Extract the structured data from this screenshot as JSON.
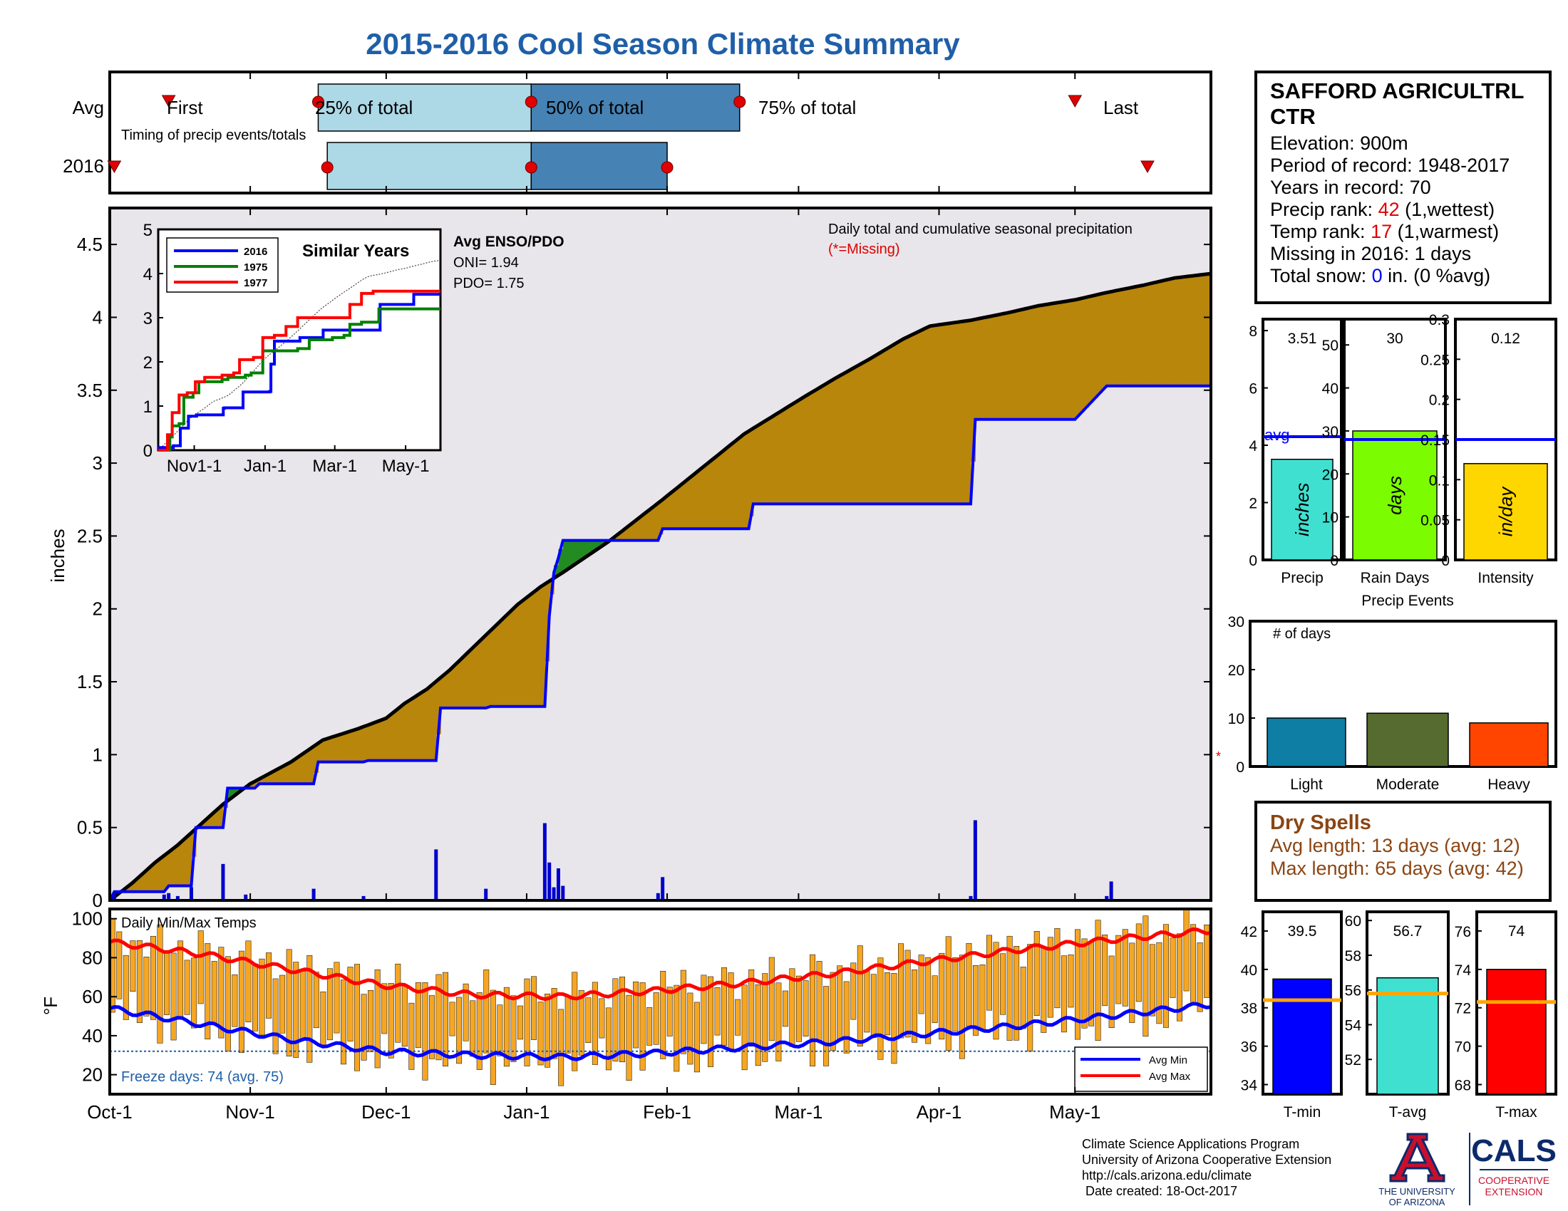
{
  "title": "2015-2016 Cool Season Climate Summary",
  "timing": {
    "row_labels": [
      "Avg",
      "2016"
    ],
    "subtitle": "Timing of precip events/totals",
    "labels": {
      "first": "First",
      "p25": "25% of total",
      "p50": "50% of total",
      "p75": "75% of total",
      "last": "Last"
    },
    "avg": {
      "first": "Oct-14",
      "p25": "Nov-16",
      "p50": "Jan-2",
      "p75": "Feb-17",
      "last": "May-1"
    },
    "y2016": {
      "first": "Oct-2",
      "p25": "Nov-18",
      "p50": "Jan-2",
      "p75": "Feb-1",
      "last": "May-17"
    }
  },
  "station": {
    "name": "SAFFORD AGRICULTRL CTR",
    "elevation": "Elevation: 900m",
    "period": "Period of record: 1948-2017",
    "years": "Years in record: 70",
    "precip_rank_label": "Precip rank: ",
    "precip_rank_value": "42",
    "precip_rank_note": " (1,wettest)",
    "temp_rank_label": "Temp rank: ",
    "temp_rank_value": "17",
    "temp_rank_note": " (1,warmest)",
    "missing": "Missing in 2016: 1 days",
    "snow_label": "Total snow: ",
    "snow_value": "0",
    "snow_note": " in. (0 %avg)"
  },
  "main_chart": {
    "ylabel": "inches",
    "note": "Daily total and cumulative seasonal precipitation",
    "missing_note": "(*=Missing)",
    "x_ticks": [
      "Oct-1",
      "Nov-1",
      "Dec-1",
      "Jan-1",
      "Feb-1",
      "Mar-1",
      "Apr-1",
      "May-1"
    ],
    "y_ticks": [
      "0",
      "0.5",
      "1",
      "1.5",
      "2",
      "2.5",
      "3",
      "3.5",
      "4",
      "4.5"
    ]
  },
  "chart_data": [
    {
      "type": "area",
      "ylabel": "inches",
      "ylim": [
        0,
        4.75
      ],
      "x_unit": "day of season (Oct-1 = 0)",
      "x_range": [
        0,
        243
      ],
      "series": [
        {
          "name": "avg cumulative",
          "x": [
            0,
            5,
            10,
            15,
            20,
            25,
            31,
            40,
            47,
            55,
            61,
            65,
            70,
            75,
            80,
            85,
            90,
            95,
            100,
            110,
            122,
            130,
            140,
            153,
            160,
            168,
            175,
            181,
            190,
            198,
            205,
            213,
            220,
            228,
            235,
            243
          ],
          "y": [
            0,
            0.12,
            0.26,
            0.38,
            0.52,
            0.66,
            0.8,
            0.95,
            1.1,
            1.18,
            1.25,
            1.35,
            1.45,
            1.58,
            1.73,
            1.88,
            2.03,
            2.15,
            2.25,
            2.46,
            2.75,
            2.95,
            3.2,
            3.45,
            3.58,
            3.72,
            3.85,
            3.94,
            3.98,
            4.03,
            4.08,
            4.12,
            4.17,
            4.22,
            4.27,
            4.3
          ]
        },
        {
          "name": "2016 cumulative",
          "x": [
            0,
            1,
            12,
            13,
            18,
            19,
            25,
            26,
            32,
            33,
            45,
            46,
            56,
            57,
            72,
            73,
            83,
            84,
            96,
            97,
            98,
            99,
            100,
            110,
            121,
            122,
            141,
            142,
            144,
            190,
            191,
            212,
            213,
            220,
            243
          ],
          "y": [
            0,
            0.06,
            0.06,
            0.1,
            0.1,
            0.5,
            0.5,
            0.77,
            0.77,
            0.8,
            0.8,
            0.95,
            0.95,
            0.96,
            0.96,
            1.32,
            1.32,
            1.33,
            1.33,
            1.95,
            2.25,
            2.35,
            2.47,
            2.47,
            2.47,
            2.55,
            2.55,
            2.72,
            2.72,
            2.72,
            3.3,
            3.3,
            3.3,
            3.53,
            3.53
          ]
        }
      ],
      "daily_bars": {
        "x": [
          1,
          12,
          13,
          15,
          18,
          25,
          30,
          45,
          56,
          72,
          83,
          96,
          97,
          98,
          99,
          100,
          121,
          122,
          190,
          191,
          220,
          221
        ],
        "y": [
          0.06,
          0.04,
          0.05,
          0.03,
          0.09,
          0.25,
          0.04,
          0.08,
          0.03,
          0.35,
          0.08,
          0.53,
          0.26,
          0.09,
          0.22,
          0.1,
          0.05,
          0.16,
          0.03,
          0.55,
          0.03,
          0.13
        ]
      }
    },
    {
      "type": "line",
      "title": "Similar Years",
      "x_ticks": [
        "Nov1-1",
        "Jan-1",
        "Mar-1",
        "May-1"
      ],
      "ylim": [
        0,
        5
      ],
      "series": [
        {
          "name": "2016",
          "x": [
            0,
            1,
            12,
            13,
            18,
            19,
            25,
            26,
            32,
            33,
            45,
            56,
            57,
            72,
            73,
            96,
            97,
            100,
            121,
            122,
            141,
            142,
            144,
            190,
            191,
            220,
            243
          ],
          "y": [
            0,
            0.06,
            0.06,
            0.1,
            0.1,
            0.5,
            0.5,
            0.77,
            0.77,
            0.8,
            0.8,
            0.95,
            0.96,
            0.96,
            1.32,
            1.33,
            1.95,
            2.47,
            2.47,
            2.55,
            2.55,
            2.72,
            2.72,
            2.72,
            3.3,
            3.53,
            3.53
          ]
        },
        {
          "name": "1975",
          "x": [
            0,
            10,
            12,
            18,
            22,
            30,
            35,
            55,
            60,
            75,
            80,
            90,
            100,
            120,
            130,
            135,
            150,
            160,
            165,
            175,
            190,
            200,
            205,
            243
          ],
          "y": [
            0,
            0.3,
            0.55,
            0.6,
            1.2,
            1.3,
            1.55,
            1.6,
            1.65,
            1.7,
            1.75,
            2.25,
            2.25,
            2.3,
            2.5,
            2.5,
            2.55,
            2.6,
            2.85,
            2.9,
            3.2,
            3.2,
            3.2,
            3.2
          ]
        },
        {
          "name": "1977",
          "x": [
            0,
            8,
            12,
            18,
            25,
            32,
            40,
            55,
            65,
            70,
            75,
            82,
            90,
            100,
            110,
            120,
            140,
            150,
            165,
            175,
            185,
            200,
            243
          ],
          "y": [
            0,
            0.35,
            0.85,
            1.25,
            1.3,
            1.55,
            1.65,
            1.7,
            1.75,
            2.05,
            2.05,
            2.1,
            2.55,
            2.6,
            2.8,
            3.0,
            3.0,
            3.0,
            3.3,
            3.55,
            3.6,
            3.6,
            3.6
          ]
        }
      ]
    },
    {
      "type": "bar",
      "categories": [
        "Precip",
        "Rain Days",
        "Intensity"
      ],
      "values": [
        3.51,
        30,
        0.12
      ],
      "units": [
        "inches",
        "days",
        "in/day"
      ],
      "averages": [
        4.3,
        28,
        0.15
      ],
      "ylims": [
        [
          0,
          8.4
        ],
        [
          0,
          56
        ],
        [
          0,
          0.3
        ]
      ],
      "y_ticks": [
        [
          "0",
          "2",
          "4",
          "6",
          "8"
        ],
        [
          "0",
          "10",
          "20",
          "30",
          "40",
          "50"
        ],
        [
          "0",
          "0.05",
          "0.1",
          "0.15",
          "0.2",
          "0.25",
          "0.3"
        ]
      ],
      "avg_label": "avg"
    },
    {
      "type": "bar",
      "title": "Precip Events",
      "ylabel": "# of days",
      "categories": [
        "Light",
        "Moderate",
        "Heavy"
      ],
      "values": [
        10,
        11,
        9
      ],
      "ylim": [
        0,
        30
      ],
      "y_ticks": [
        "0",
        "10",
        "20",
        "30"
      ]
    },
    {
      "type": "bar",
      "title": "Daily Min/Max Temps",
      "ylabel": "°F",
      "ylim": [
        10,
        105
      ],
      "y_ticks": [
        "20",
        "40",
        "60",
        "80",
        "100"
      ],
      "freeze_line": 32,
      "legend": [
        "Avg Min",
        "Avg Max"
      ],
      "freeze_note": "Freeze days: 74 (avg. 75)",
      "avg_min": {
        "x": [
          0,
          20,
          40,
          60,
          80,
          100,
          120,
          140,
          160,
          180,
          200,
          220,
          243
        ],
        "y": [
          54,
          46,
          38,
          32,
          30,
          29,
          31,
          34,
          37,
          41,
          45,
          50,
          56
        ]
      },
      "avg_max": {
        "x": [
          0,
          20,
          40,
          60,
          80,
          100,
          120,
          140,
          160,
          180,
          200,
          220,
          243
        ],
        "y": [
          88,
          82,
          74,
          66,
          61,
          60,
          63,
          67,
          72,
          78,
          84,
          89,
          94
        ]
      }
    },
    {
      "type": "bar",
      "categories": [
        "T-min",
        "T-avg",
        "T-max"
      ],
      "values": [
        39.5,
        56.7,
        74
      ],
      "averages": [
        38.4,
        55.8,
        72.3
      ],
      "ylims": [
        [
          33.5,
          43
        ],
        [
          50,
          60.5
        ],
        [
          67.5,
          77
        ]
      ],
      "y_ticks": [
        [
          "34",
          "36",
          "38",
          "40",
          "42"
        ],
        [
          "52",
          "54",
          "56",
          "58",
          "60"
        ],
        [
          "68",
          "70",
          "72",
          "74",
          "76"
        ]
      ],
      "colors": [
        "#0000ff",
        "#40e0d0",
        "#ff0000"
      ]
    }
  ],
  "dry_spells": {
    "title": "Dry Spells",
    "avg_length": "Avg length: 13 days (avg: 12)",
    "max_length": "Max length: 65 days (avg: 42)"
  },
  "enso": {
    "title": "Avg ENSO/PDO",
    "oni": "ONI= 1.94",
    "pdo": "PDO= 1.75"
  },
  "footer": {
    "lines": [
      "Climate Science Applications Program",
      "University of Arizona Cooperative Extension",
      "http://cals.arizona.edu/climate",
      " Date created: 18-Oct-2017"
    ],
    "ua_line1": "THE UNIVERSITY",
    "ua_line2": "OF ARIZONA",
    "cals": "CALS",
    "coop1": "COOPERATIVE",
    "coop2": "EXTENSION"
  },
  "colors": {
    "title": "#1f5fa8",
    "avg_fill": "#b8860b",
    "above_fill": "#228b22",
    "cum_2016": "#0000ff",
    "plot_bg": "#e8e6ea",
    "temp_bar": "#f5a623",
    "dry_text": "#8b4513",
    "light": "#0e7ea4",
    "moderate": "#556b2f",
    "heavy": "#ff4500",
    "ua_red": "#c8102e",
    "ua_blue": "#0c2a6b"
  }
}
